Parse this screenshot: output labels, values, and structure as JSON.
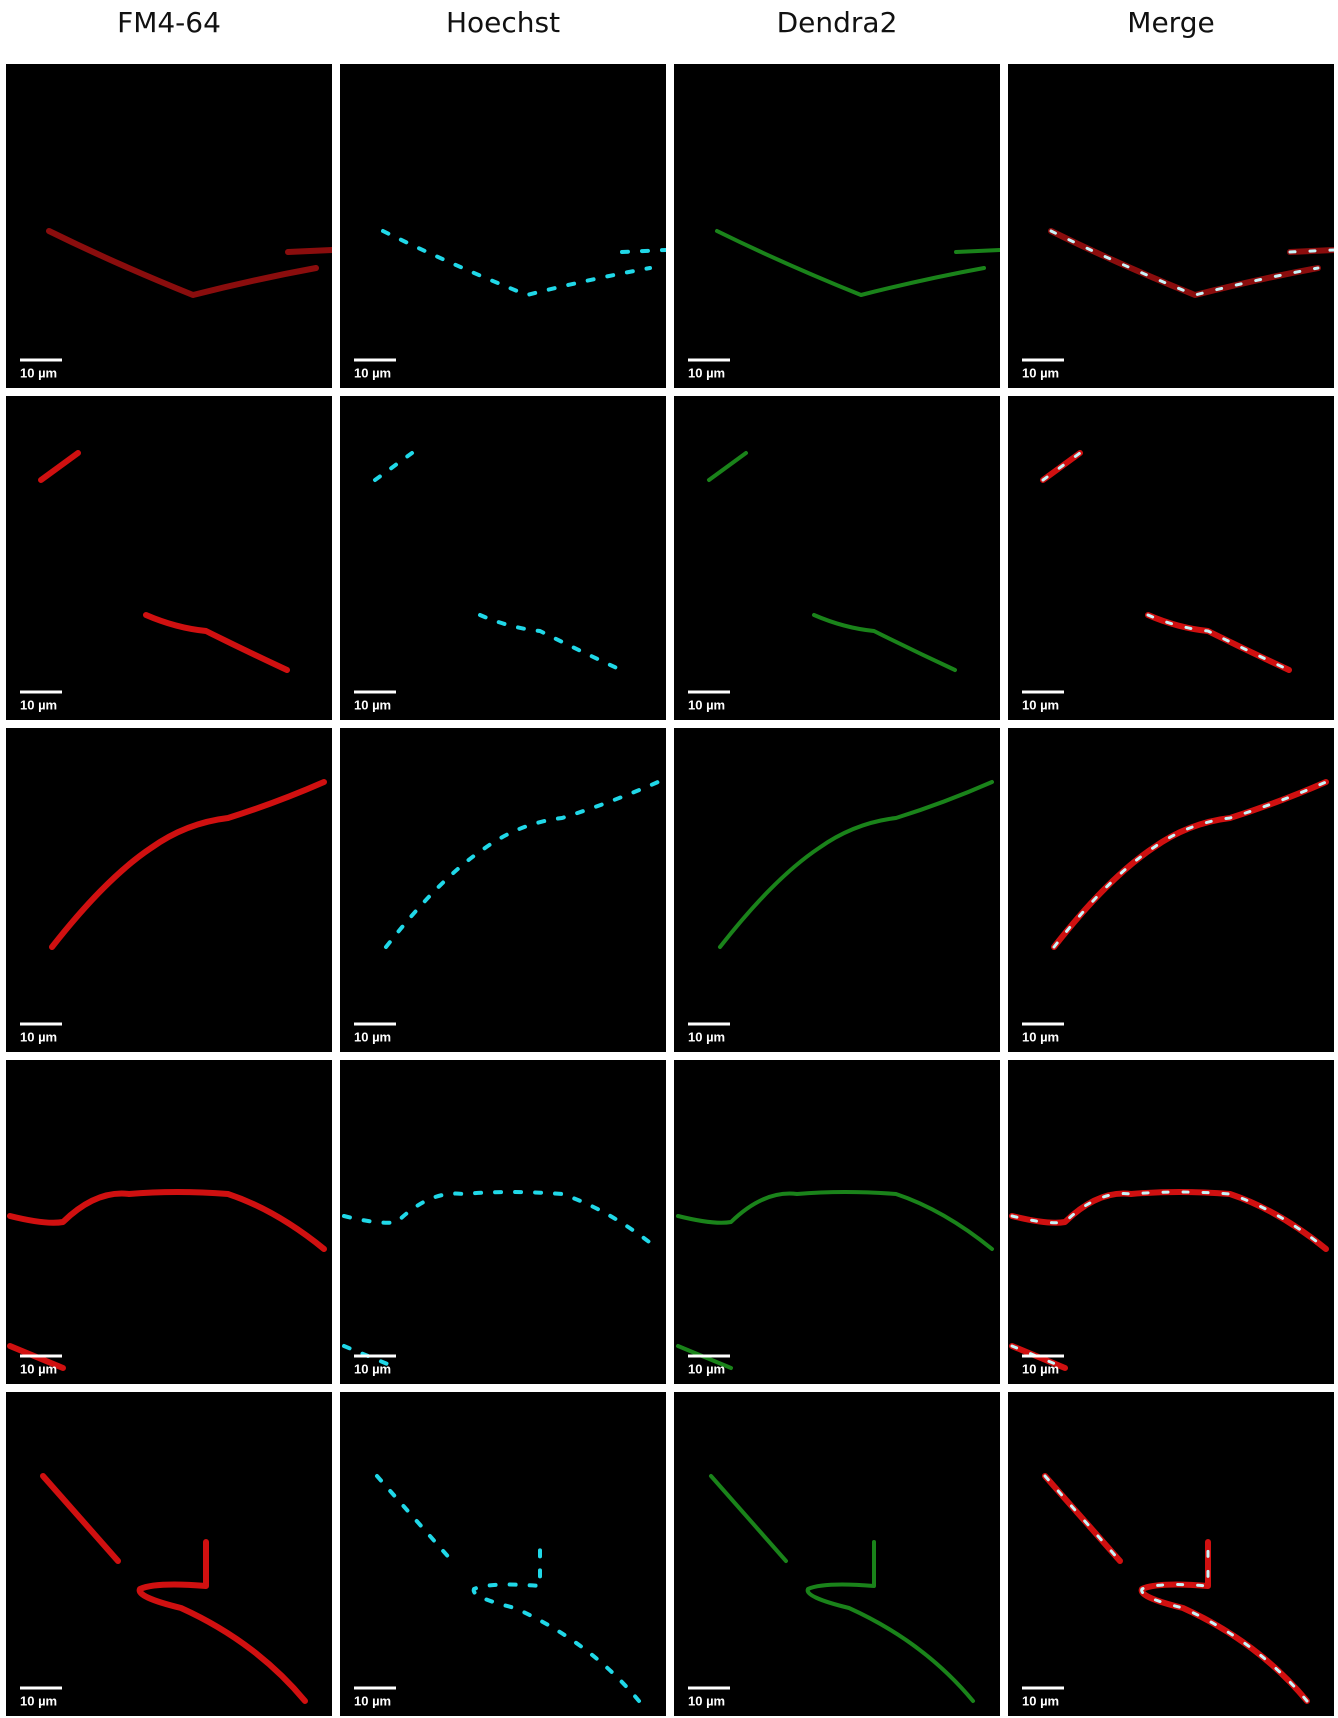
{
  "columns": [
    "FM4-64",
    "Hoechst",
    "Dendra2",
    "Merge"
  ],
  "panels": [
    [
      {
        "scale_bar": "10 µm"
      },
      {
        "scale_bar": "10 µm"
      },
      {
        "scale_bar": "10 µm"
      },
      {
        "scale_bar": "10 µm"
      }
    ],
    [
      {
        "scale_bar": "10 µm"
      },
      {
        "scale_bar": "10 µm"
      },
      {
        "scale_bar": "10 µm"
      },
      {
        "scale_bar": "10 µm"
      }
    ],
    [
      {
        "scale_bar": "10 µm"
      },
      {
        "scale_bar": "10 µm"
      },
      {
        "scale_bar": "10 µm"
      },
      {
        "scale_bar": "10 µm"
      }
    ],
    [
      {
        "scale_bar": "10 µm"
      },
      {
        "scale_bar": "10 µm"
      },
      {
        "scale_bar": "10 µm"
      },
      {
        "scale_bar": "10 µm"
      }
    ],
    [
      {
        "scale_bar": "10 µm"
      },
      {
        "scale_bar": "10 µm"
      },
      {
        "scale_bar": "10 µm"
      },
      {
        "scale_bar": "10 µm"
      }
    ]
  ]
}
